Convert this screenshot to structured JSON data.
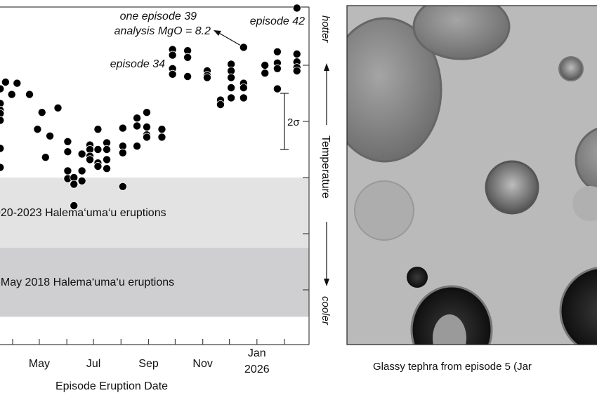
{
  "chart_data": {
    "type": "scatter",
    "xlabel": "Episode Eruption Date",
    "x_ticks": [
      "2025-04-01",
      "2025-05-01",
      "2025-06-01",
      "2025-07-01",
      "2025-08-01",
      "2025-09-01",
      "2025-10-01",
      "2025-11-01",
      "2025-12-01",
      "2026-01-01",
      "2026-02-01"
    ],
    "x_tick_labels": [
      {
        "date": "2025-05-01",
        "label": "May"
      },
      {
        "date": "2025-07-01",
        "label": "Jul"
      },
      {
        "date": "2025-09-01",
        "label": "Sep"
      },
      {
        "date": "2025-11-01",
        "label": "Nov"
      },
      {
        "date": "2026-01-01",
        "label": "Jan",
        "label2": "2026"
      }
    ],
    "y_axis_quantity": "MgO",
    "y_ticks": [
      8.0,
      7.5,
      7.0,
      6.5,
      6.0
    ],
    "ylim": [
      5.76,
      8.52
    ],
    "grid": false,
    "right_axis": {
      "label": "Temperature",
      "top": "hotter",
      "bottom": "cooler"
    },
    "bands": [
      {
        "label": "020-2023 Halema‘uma‘u eruptions",
        "from": 7.0,
        "to": 6.375,
        "color": "#e3e3e3"
      },
      {
        "label": "l-May 2018 Halema‘uma‘u eruptions",
        "from": 6.375,
        "to": 5.76,
        "color": "#cfcfd1"
      }
    ],
    "error_bar": {
      "label": "2σ",
      "size": 0.5,
      "center": 7.5
    },
    "annotations": [
      {
        "line1": "one episode 39",
        "line2": "analysis MgO = 8.2",
        "point": [
          "2025-12-17",
          8.16
        ]
      },
      {
        "text": "episode 42",
        "point": [
          "2026-02-15",
          8.51
        ]
      },
      {
        "text": "episode 34",
        "point": [
          "2025-09-28",
          8.09
        ]
      }
    ],
    "points": [
      [
        "2025-03-18",
        7.79
      ],
      [
        "2025-03-24",
        7.85
      ],
      [
        "2025-04-06",
        7.84
      ],
      [
        "2025-03-31",
        7.74
      ],
      [
        "2025-04-20",
        7.74
      ],
      [
        "2025-03-18",
        7.66
      ],
      [
        "2025-03-18",
        7.6
      ],
      [
        "2025-03-18",
        7.57
      ],
      [
        "2025-03-18",
        7.51
      ],
      [
        "2025-03-18",
        7.26
      ],
      [
        "2025-03-18",
        7.09
      ],
      [
        "2025-05-04",
        7.58
      ],
      [
        "2025-05-22",
        7.62
      ],
      [
        "2025-04-29",
        7.43
      ],
      [
        "2025-05-13",
        7.37
      ],
      [
        "2025-05-08",
        7.18
      ],
      [
        "2025-06-02",
        7.32
      ],
      [
        "2025-06-02",
        7.23
      ],
      [
        "2025-06-02",
        7.06
      ],
      [
        "2025-06-02",
        6.99
      ],
      [
        "2025-06-09",
        7.0
      ],
      [
        "2025-06-09",
        6.94
      ],
      [
        "2025-06-18",
        7.21
      ],
      [
        "2025-06-18",
        7.06
      ],
      [
        "2025-06-18",
        6.97
      ],
      [
        "2025-06-09",
        6.75
      ],
      [
        "2025-06-27",
        7.29
      ],
      [
        "2025-06-27",
        7.25
      ],
      [
        "2025-06-27",
        7.19
      ],
      [
        "2025-06-27",
        7.16
      ],
      [
        "2025-07-06",
        7.43
      ],
      [
        "2025-07-06",
        7.25
      ],
      [
        "2025-07-06",
        7.13
      ],
      [
        "2025-07-06",
        7.1
      ],
      [
        "2025-07-16",
        7.31
      ],
      [
        "2025-07-16",
        7.25
      ],
      [
        "2025-07-16",
        7.16
      ],
      [
        "2025-07-16",
        7.08
      ],
      [
        "2025-08-03",
        7.44
      ],
      [
        "2025-08-03",
        7.28
      ],
      [
        "2025-08-03",
        7.22
      ],
      [
        "2025-08-03",
        6.92
      ],
      [
        "2025-08-19",
        7.53
      ],
      [
        "2025-08-19",
        7.46
      ],
      [
        "2025-08-19",
        7.28
      ],
      [
        "2025-08-30",
        7.58
      ],
      [
        "2025-08-30",
        7.45
      ],
      [
        "2025-08-30",
        7.38
      ],
      [
        "2025-08-30",
        7.36
      ],
      [
        "2025-09-16",
        7.43
      ],
      [
        "2025-09-16",
        7.36
      ],
      [
        "2025-09-28",
        8.14
      ],
      [
        "2025-09-28",
        8.09
      ],
      [
        "2025-09-28",
        7.97
      ],
      [
        "2025-09-28",
        7.92
      ],
      [
        "2025-10-15",
        8.13
      ],
      [
        "2025-10-15",
        8.07
      ],
      [
        "2025-10-15",
        7.9
      ],
      [
        "2025-11-06",
        7.95
      ],
      [
        "2025-11-06",
        7.91
      ],
      [
        "2025-11-06",
        7.89
      ],
      [
        "2025-11-21",
        7.69
      ],
      [
        "2025-11-21",
        7.65
      ],
      [
        "2025-12-03",
        8.01
      ],
      [
        "2025-12-03",
        7.95
      ],
      [
        "2025-12-03",
        7.89
      ],
      [
        "2025-12-03",
        7.8
      ],
      [
        "2025-12-03",
        7.71
      ],
      [
        "2025-12-17",
        8.16
      ],
      [
        "2025-12-17",
        7.84
      ],
      [
        "2025-12-17",
        7.8
      ],
      [
        "2025-12-17",
        7.71
      ],
      [
        "2026-01-10",
        8.0
      ],
      [
        "2026-01-10",
        7.93
      ],
      [
        "2026-01-24",
        8.12
      ],
      [
        "2026-01-24",
        8.02
      ],
      [
        "2026-01-24",
        7.97
      ],
      [
        "2026-01-24",
        7.79
      ],
      [
        "2026-02-15",
        8.51
      ],
      [
        "2026-02-15",
        8.1
      ],
      [
        "2026-02-15",
        8.03
      ],
      [
        "2026-02-15",
        7.98
      ],
      [
        "2026-02-15",
        7.95
      ]
    ],
    "marker_color": "#000000"
  },
  "photo": {
    "caption": "Glassy tephra from episode 5 (Jar",
    "background": "#b9b9b9"
  }
}
